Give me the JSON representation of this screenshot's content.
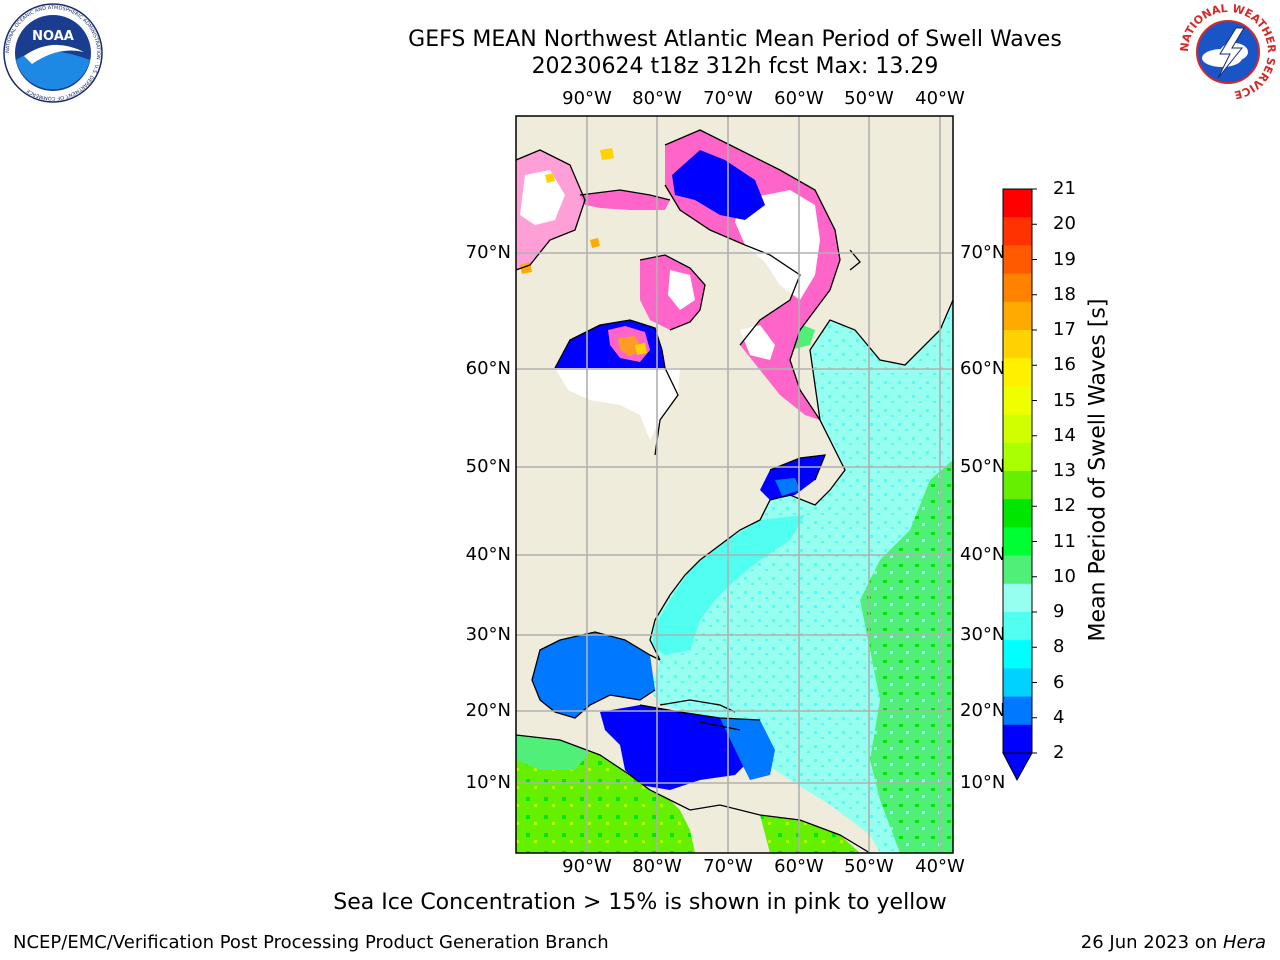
{
  "header": {
    "title_line1": "GEFS MEAN Northwest Atlantic Mean Period of Swell Waves",
    "title_line2": "20230624 t18z 312h fcst   Max: 13.29"
  },
  "logos": {
    "left": "NOAA",
    "left_ring": "NATIONAL OCEANIC AND ATMOSPHERIC ADMINISTRATION · U.S. DEPARTMENT OF COMMERCE",
    "right_ring": "NATIONAL WEATHER SERVICE"
  },
  "map": {
    "lon_labels": [
      "90°W",
      "80°W",
      "70°W",
      "60°W",
      "50°W",
      "40°W"
    ],
    "lat_labels": [
      "70°N",
      "60°N",
      "50°N",
      "40°N",
      "30°N",
      "20°N",
      "10°N"
    ],
    "colors": {
      "land": "#efecdc",
      "ice_white": "#ffffff",
      "coast": "#000000",
      "grid": "#b0b0b0"
    }
  },
  "colorbar": {
    "title": "Mean Period of Swell Waves [s]",
    "ticks": [
      "21",
      "20",
      "19",
      "18",
      "17",
      "16",
      "15",
      "14",
      "13",
      "12",
      "11",
      "10",
      "9",
      "8",
      "6",
      "4",
      "2"
    ],
    "colors": [
      "#ff0000",
      "#ff3200",
      "#ff5a00",
      "#ff8200",
      "#ffaa00",
      "#ffd200",
      "#fff000",
      "#f0ff00",
      "#d2ff00",
      "#aaff00",
      "#64f000",
      "#00e600",
      "#00ff32",
      "#50f078",
      "#96fff0",
      "#50fff0",
      "#00ffff",
      "#00d2ff",
      "#0078ff",
      "#0000ff"
    ]
  },
  "caption": "Sea Ice Concentration > 15% is shown in pink to yellow",
  "footer": {
    "left": "NCEP/EMC/Verification Post Processing Product Generation Branch",
    "right_prefix": "26 Jun 2023 on ",
    "right_host": "Hera"
  }
}
